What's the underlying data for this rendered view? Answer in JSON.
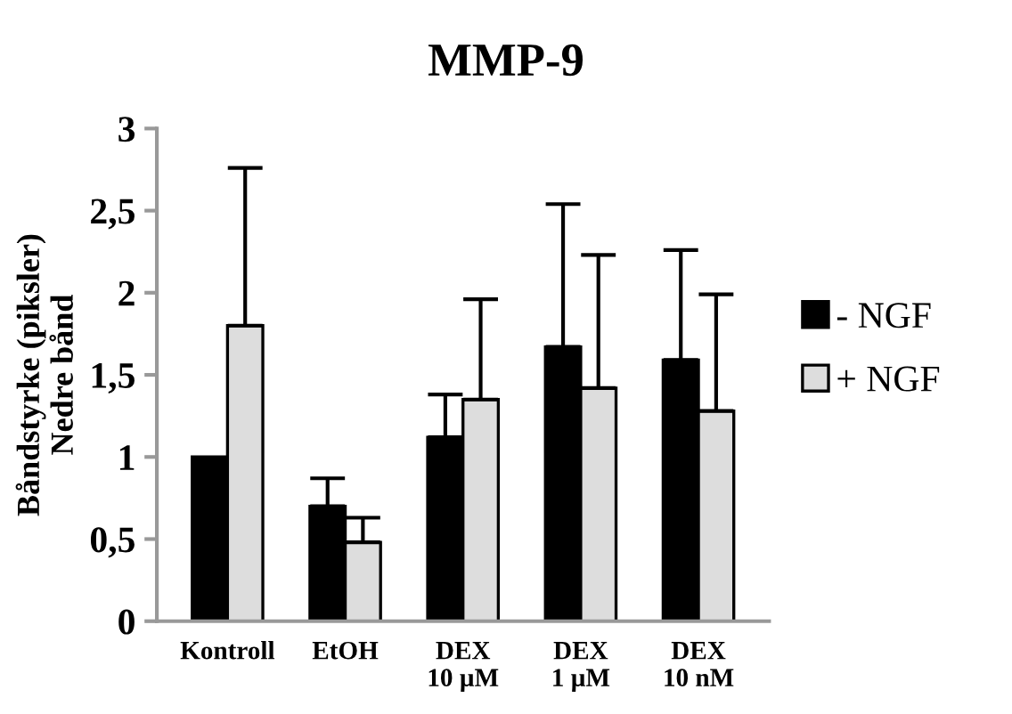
{
  "chart_data": {
    "type": "bar",
    "title": "MMP-9",
    "ylabel": "Båndstyrke (piksler)\nNedre bånd",
    "categories": [
      "Kontroll",
      "EtOH",
      "DEX\n10 µM",
      "DEX\n1 µM",
      "DEX\n10 nM"
    ],
    "series": [
      {
        "name": "- NGF",
        "color": "#000000",
        "values": [
          1.0,
          0.7,
          1.12,
          1.67,
          1.59
        ],
        "errors": [
          null,
          [
            0.7,
            0.87
          ],
          [
            1.12,
            1.38
          ],
          [
            1.67,
            2.54
          ],
          [
            1.59,
            2.26
          ]
        ]
      },
      {
        "name": "+ NGF",
        "color": "#dddddd",
        "values": [
          1.8,
          0.48,
          1.35,
          1.42,
          1.28
        ],
        "errors": [
          [
            1.8,
            2.76
          ],
          [
            0.48,
            0.63
          ],
          [
            1.35,
            1.96
          ],
          [
            1.42,
            2.23
          ],
          [
            1.28,
            1.99
          ]
        ]
      }
    ],
    "ylim": [
      0,
      3
    ],
    "yticks": [
      0,
      {
        "value": 0.5,
        "label": "0,5"
      },
      1,
      {
        "value": 1.5,
        "label": "1,5"
      },
      2,
      {
        "value": 2.5,
        "label": "2,5"
      },
      3
    ],
    "grid": false,
    "legend": "right"
  }
}
